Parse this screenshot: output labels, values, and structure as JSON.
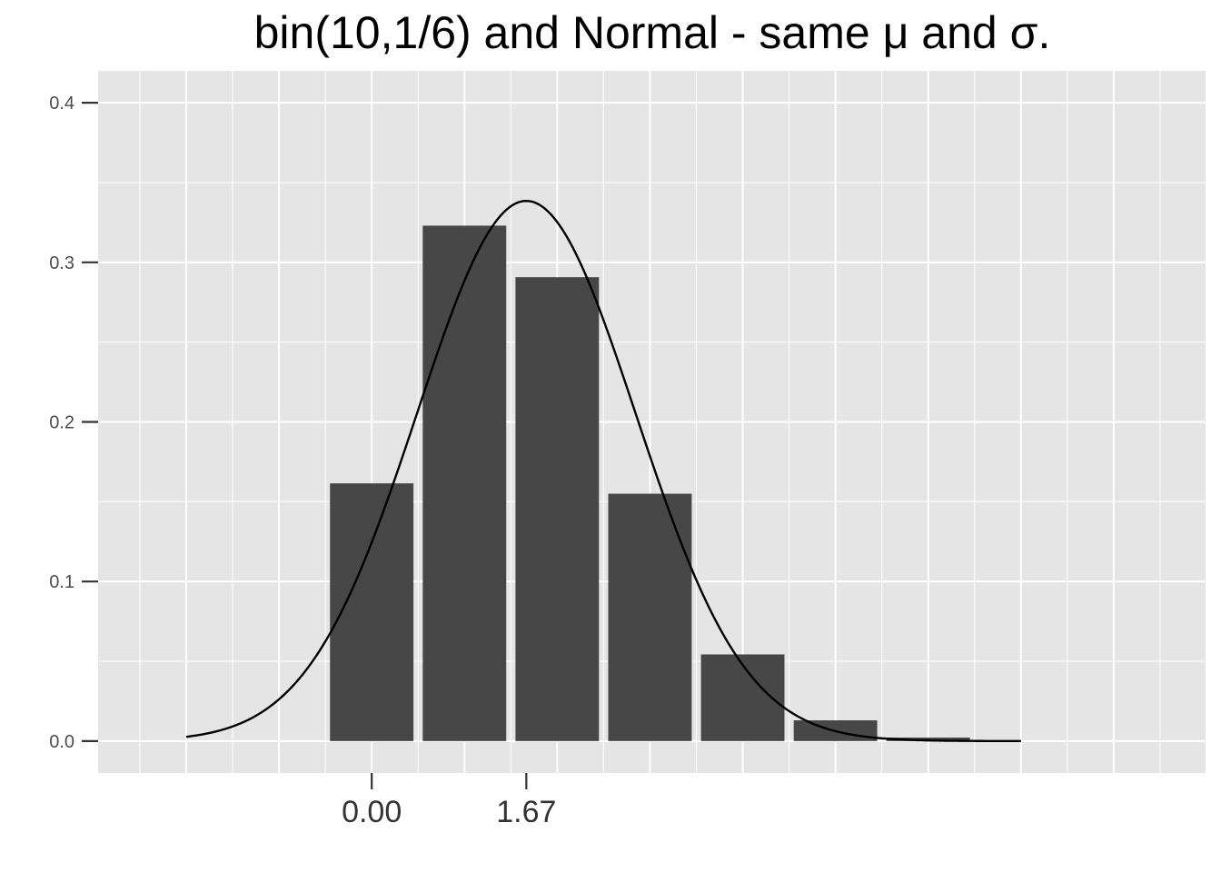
{
  "chart_data": {
    "type": "bar",
    "title": "bin(10,1/6) and Normal - same μ and σ.",
    "xlabel": "",
    "ylabel": "",
    "x": [
      0,
      1,
      2,
      3,
      4,
      5,
      6
    ],
    "values": [
      0.1615,
      0.323,
      0.2907,
      0.155,
      0.0543,
      0.013,
      0.0022
    ],
    "xlim": [
      -2.95,
      9.0
    ],
    "ylim": [
      -0.02,
      0.42
    ],
    "x_ticks": [
      0.0,
      1.6667
    ],
    "x_tick_labels": [
      "0.00",
      "1.67"
    ],
    "y_ticks": [
      0.0,
      0.1,
      0.2,
      0.3,
      0.4
    ],
    "y_tick_labels": [
      "0.0",
      "0.1",
      "0.2",
      "0.3",
      "0.4"
    ],
    "overlay_curve": {
      "type": "normal_density",
      "mean": 1.6667,
      "sd": 1.1785,
      "x_range": [
        -2.0,
        7.0
      ]
    },
    "grid": true,
    "colors": {
      "panel_background": "#e5e5e5",
      "grid_line": "#ffffff",
      "bar_fill": "#474747",
      "curve": "#000000"
    }
  }
}
